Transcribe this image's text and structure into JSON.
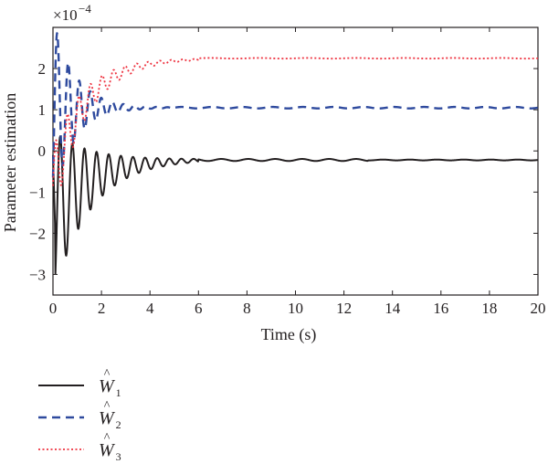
{
  "chart_data": {
    "type": "line",
    "xlabel": "Time (s)",
    "ylabel": "Parameter estimation",
    "y_multiplier_label": "×10",
    "y_multiplier_exponent": "−4",
    "xlim": [
      0,
      20
    ],
    "ylim": [
      -3.5,
      3
    ],
    "x_ticks": [
      "0",
      "2",
      "4",
      "6",
      "8",
      "10",
      "12",
      "14",
      "16",
      "18",
      "20"
    ],
    "y_ticks": [
      "2",
      "1",
      "0",
      "−1",
      "−2",
      "−3"
    ],
    "y_tick_values": [
      2,
      1,
      0,
      -1,
      -2,
      -3
    ],
    "grid": false,
    "legend_position": "bottom-left",
    "series": [
      {
        "name_main": "W",
        "name_sub": "1",
        "color": "#231f20",
        "dash": "solid",
        "final": -0.2,
        "min": -3.0,
        "max": 0.0,
        "settle_time_s": 6
      },
      {
        "name_main": "W",
        "name_sub": "2",
        "color": "#2e4a9e",
        "dash": "dashed",
        "final": 1.05,
        "min": -2.1,
        "max": 2.2,
        "settle_time_s": 4
      },
      {
        "name_main": "W",
        "name_sub": "3",
        "color": "#ee3340",
        "dash": "dotted",
        "final": 2.25,
        "min": -1.3,
        "max": 2.27,
        "settle_time_s": 6
      }
    ]
  }
}
